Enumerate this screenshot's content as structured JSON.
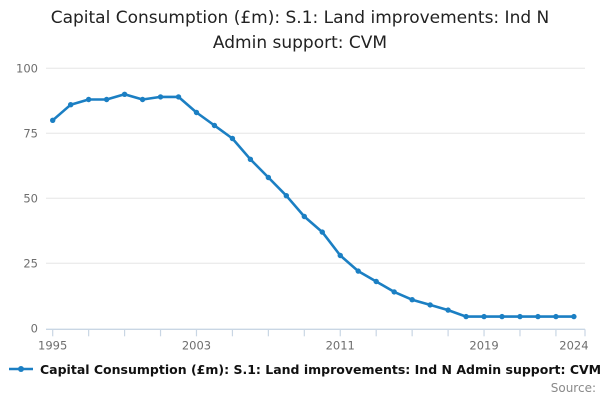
{
  "chart": {
    "title": "Capital Consumption (£m): S.1: Land improvements: Ind N Admin support: CVM",
    "source_label": "Source:",
    "legend": [
      {
        "label": "Capital Consumption (£m): S.1: Land improvements: Ind N Admin support: CVM",
        "color": "#1b7fc3"
      }
    ]
  },
  "chart_data": {
    "type": "line",
    "title": "Capital Consumption (£m): S.1: Land improvements: Ind N Admin support: CVM",
    "xlabel": "",
    "ylabel": "",
    "x": [
      1995,
      1996,
      1997,
      1998,
      1999,
      2000,
      2001,
      2002,
      2003,
      2004,
      2005,
      2006,
      2007,
      2008,
      2009,
      2010,
      2011,
      2012,
      2013,
      2014,
      2015,
      2016,
      2017,
      2018,
      2019,
      2020,
      2021,
      2022,
      2023,
      2024
    ],
    "series": [
      {
        "name": "Capital Consumption (£m): S.1: Land improvements: Ind N Admin support: CVM",
        "values": [
          80,
          86,
          88,
          88,
          90,
          88,
          89,
          89,
          83,
          78,
          73,
          65,
          58,
          51,
          43,
          37,
          28,
          22,
          18,
          14,
          11,
          9,
          7,
          4.5,
          4.5,
          4.5,
          4.5,
          4.5,
          4.5,
          4.5
        ]
      }
    ],
    "xlim": [
      1995,
      2024
    ],
    "ylim": [
      0,
      100
    ],
    "yticks": [
      0,
      25,
      50,
      75,
      100
    ],
    "xtick_labels": [
      1995,
      2003,
      2011,
      2019,
      2024
    ],
    "minor_xtick_step": 2,
    "grid": true,
    "legend_position": "bottom-left",
    "marker": "dot",
    "colors": {
      "line": "#1b7fc3",
      "grid": "#e6e6e6",
      "axis": "#c9d6e4",
      "tick_text": "#6e6e6e",
      "title_text": "#222222"
    }
  }
}
